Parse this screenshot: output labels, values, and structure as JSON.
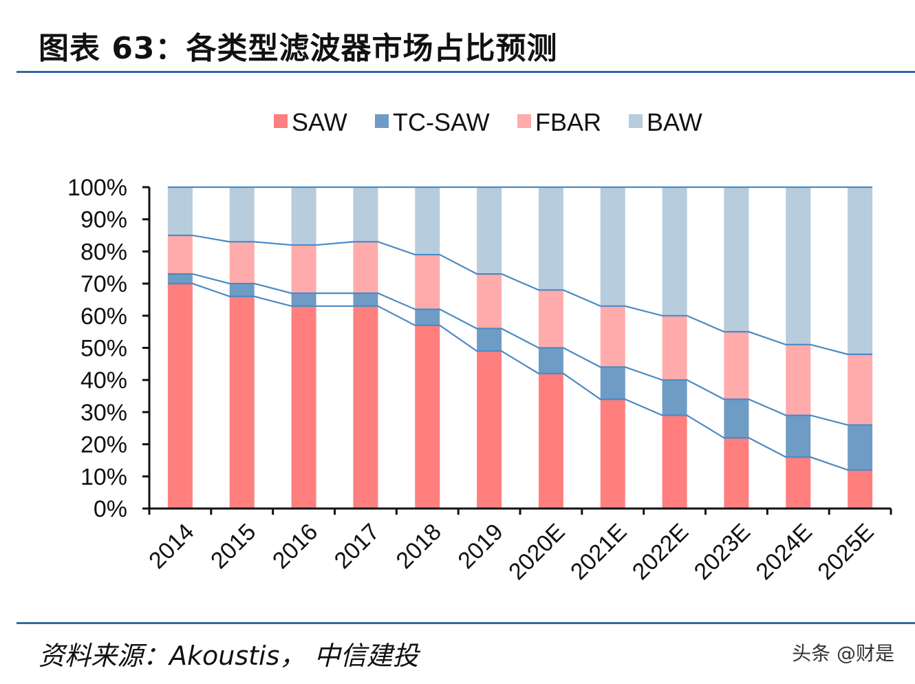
{
  "header": {
    "title": "图表 63：各类型滤波器市场占比预测"
  },
  "footer": {
    "source": "资料来源：Akoustis， 中信建投",
    "watermark": "头条 @财是"
  },
  "chart_data": {
    "type": "bar",
    "stacked": true,
    "categories": [
      "2014",
      "2015",
      "2016",
      "2017",
      "2018",
      "2019",
      "2020E",
      "2021E",
      "2022E",
      "2023E",
      "2024E",
      "2025E"
    ],
    "series": [
      {
        "name": "SAW",
        "color": "#ff7f7f",
        "values": [
          70,
          66,
          63,
          63,
          57,
          49,
          42,
          34,
          29,
          22,
          16,
          12
        ]
      },
      {
        "name": "TC-SAW",
        "color": "#6f9cc4",
        "values": [
          3,
          4,
          4,
          4,
          5,
          7,
          8,
          10,
          11,
          12,
          13,
          14
        ]
      },
      {
        "name": "FBAR",
        "color": "#ffabab",
        "values": [
          12,
          13,
          15,
          16,
          17,
          17,
          18,
          19,
          20,
          21,
          22,
          22
        ]
      },
      {
        "name": "BAW",
        "color": "#b7ccdd",
        "values": [
          15,
          17,
          18,
          17,
          21,
          27,
          32,
          37,
          40,
          45,
          49,
          52
        ]
      }
    ],
    "yticks": [
      "0%",
      "10%",
      "20%",
      "30%",
      "40%",
      "50%",
      "60%",
      "70%",
      "80%",
      "90%",
      "100%"
    ],
    "ylim": [
      0,
      100
    ],
    "legend_position": "top-center",
    "connector_line_color": "#4a8ac4",
    "grid": false
  }
}
